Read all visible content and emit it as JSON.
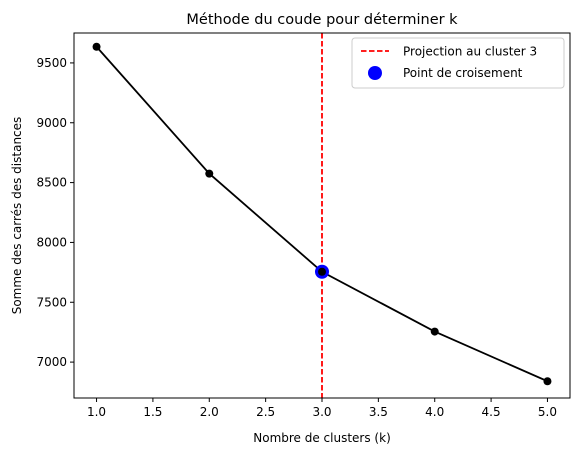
{
  "chart_data": {
    "type": "line",
    "title": "Méthode du coude pour déterminer k",
    "xlabel": "Nombre de clusters (k)",
    "ylabel": "Somme des carrés des distances",
    "xlim": [
      0.8,
      5.2
    ],
    "ylim": [
      6700,
      9750
    ],
    "xticks": [
      1.0,
      1.5,
      2.0,
      2.5,
      3.0,
      3.5,
      4.0,
      4.5,
      5.0
    ],
    "xtick_labels": [
      "1.0",
      "1.5",
      "2.0",
      "2.5",
      "3.0",
      "3.5",
      "4.0",
      "4.5",
      "5.0"
    ],
    "yticks": [
      7000,
      7500,
      8000,
      8500,
      9000,
      9500
    ],
    "ytick_labels": [
      "7000",
      "7500",
      "8000",
      "8500",
      "9000",
      "9500"
    ],
    "grid": false,
    "legend_position": "top-right",
    "series": [
      {
        "x": [
          1,
          2,
          3,
          4,
          5
        ],
        "y": [
          9635,
          8575,
          7755,
          7255,
          6840
        ],
        "color": "#000000",
        "marker": "circle"
      }
    ],
    "vline": {
      "name": "Projection au cluster 3",
      "x": 3,
      "color": "#ff0000",
      "style": "dashed"
    },
    "highlight_point": {
      "name": "Point de croisement",
      "x": 3,
      "y": 7755,
      "color": "#0000ff"
    }
  }
}
